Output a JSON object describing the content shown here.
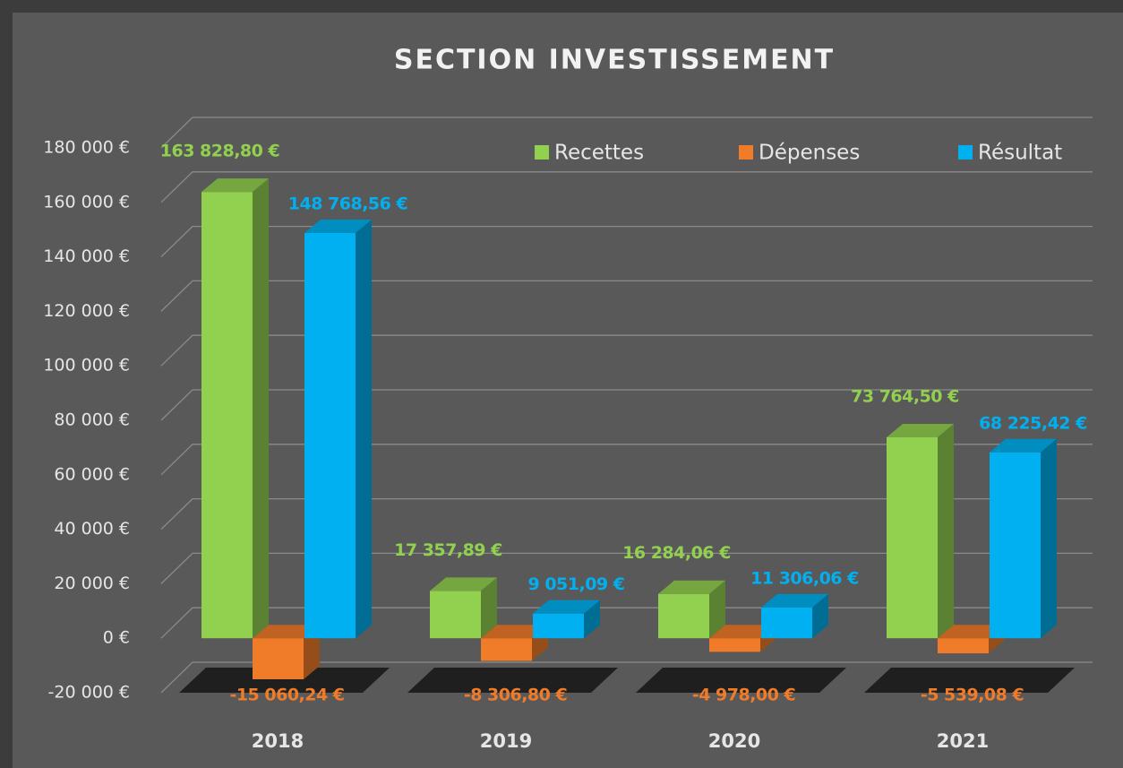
{
  "chart_data": {
    "type": "bar3d",
    "title": "SECTION INVESTISSEMENT",
    "categories": [
      "2018",
      "2019",
      "2020",
      "2021"
    ],
    "series": [
      {
        "name": "Recettes",
        "color": "#92d050",
        "values": [
          163828.8,
          17357.89,
          16284.06,
          73764.5
        ],
        "value_labels": [
          "163 828,80 €",
          "17 357,89 €",
          "16 284,06 €",
          "73 764,50 €"
        ]
      },
      {
        "name": "Dépenses",
        "color": "#f07c2a",
        "values": [
          -15060.24,
          -8306.8,
          -4978.0,
          -5539.08
        ],
        "value_labels": [
          "-15 060,24 €",
          "-8 306,80 €",
          "-4 978,00 €",
          "-5 539,08 €"
        ]
      },
      {
        "name": "Résultat",
        "color": "#00b0f0",
        "values": [
          148768.56,
          9051.09,
          11306.06,
          68225.42
        ],
        "value_labels": [
          "148 768,56 €",
          "9 051,09 €",
          "11 306,06 €",
          "68 225,42 €"
        ]
      }
    ],
    "ylim": [
      -20000,
      180000
    ],
    "yticks": [
      {
        "value": -20000,
        "label": "-20 000 €"
      },
      {
        "value": 0,
        "label": "0 €"
      },
      {
        "value": 20000,
        "label": "20 000 €"
      },
      {
        "value": 40000,
        "label": "40 000 €"
      },
      {
        "value": 60000,
        "label": "60 000 €"
      },
      {
        "value": 80000,
        "label": "80 000 €"
      },
      {
        "value": 100000,
        "label": "100 000 €"
      },
      {
        "value": 120000,
        "label": "120 000 €"
      },
      {
        "value": 140000,
        "label": "140 000 €"
      },
      {
        "value": 160000,
        "label": "160 000 €"
      },
      {
        "value": 180000,
        "label": "180 000 €"
      }
    ],
    "grid": true,
    "legend": "top-right"
  }
}
